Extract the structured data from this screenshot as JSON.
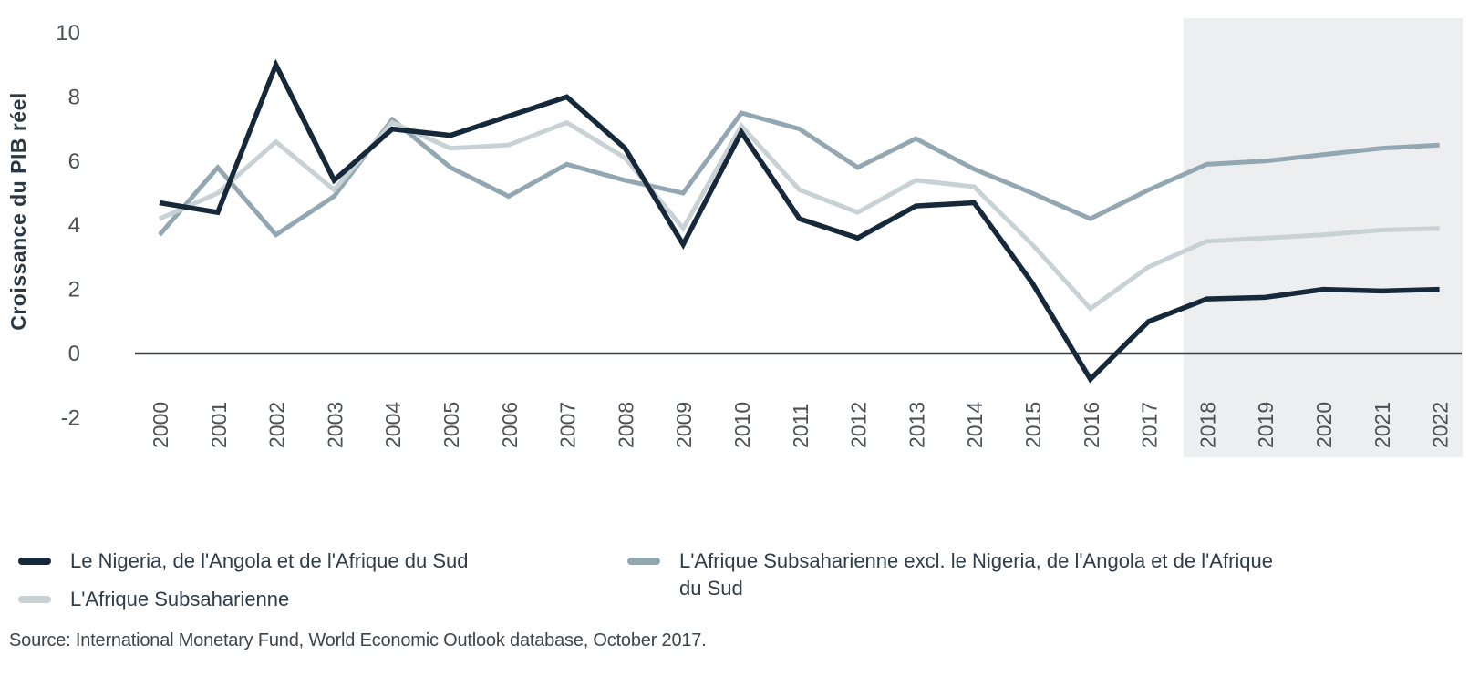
{
  "chart_data": {
    "type": "line",
    "title": "",
    "xlabel": "",
    "ylabel": "Croissance du PIB réel",
    "x": [
      2000,
      2001,
      2002,
      2003,
      2004,
      2005,
      2006,
      2007,
      2008,
      2009,
      2010,
      2011,
      2012,
      2013,
      2014,
      2015,
      2016,
      2017,
      2018,
      2019,
      2020,
      2021,
      2022
    ],
    "series": [
      {
        "name": "Le Nigeria, de l'Angola et de l'Afrique du Sud",
        "color": "#16293a",
        "stroke_width": 5.5,
        "values": [
          4.7,
          4.4,
          9.0,
          5.4,
          7.0,
          6.8,
          7.4,
          8.0,
          6.4,
          3.4,
          6.9,
          4.2,
          3.6,
          4.6,
          4.7,
          2.2,
          -0.8,
          1.0,
          1.7,
          1.75,
          2.0,
          1.95,
          2.0
        ]
      },
      {
        "name": "L'Afrique Subsaharienne",
        "color": "#c8d2d5",
        "stroke_width": 5,
        "values": [
          4.2,
          5.0,
          6.6,
          5.1,
          7.2,
          6.4,
          6.5,
          7.2,
          6.1,
          3.9,
          7.1,
          5.1,
          4.4,
          5.4,
          5.2,
          3.4,
          1.4,
          2.7,
          3.5,
          3.6,
          3.7,
          3.85,
          3.9
        ]
      },
      {
        "name": "L'Afrique Subsaharienne excl. le Nigeria, de l'Angola et de l'Afrique du Sud",
        "color": "#92a7b2",
        "stroke_width": 5,
        "values": [
          3.7,
          5.8,
          3.7,
          4.9,
          7.3,
          5.8,
          4.9,
          5.9,
          5.4,
          5.0,
          7.5,
          7.0,
          5.8,
          6.7,
          5.75,
          5.0,
          4.2,
          5.1,
          5.9,
          6.0,
          6.2,
          6.4,
          6.5
        ]
      }
    ],
    "yticks": [
      10,
      8,
      6,
      4,
      2,
      0,
      -2
    ],
    "ylim": [
      -2.8,
      10.5
    ],
    "grid": false,
    "zero_line": true,
    "legend_position": "bottom",
    "forecast_band": {
      "x_start": 2017.6,
      "x_end": 2022.4,
      "color": "#edeef0"
    }
  },
  "axis": {
    "y_title": "Croissance du PIB réel"
  },
  "legend": {
    "items": [
      {
        "label": "Le Nigeria, de l'Angola et de l'Afrique du Sud",
        "color": "#16293a"
      },
      {
        "label": "L'Afrique Subsaharienne",
        "color": "#c8d2d5"
      },
      {
        "label": "L'Afrique Subsaharienne excl. le Nigeria, de l'Angola et de l'Afrique du Sud",
        "color": "#92a7b2"
      }
    ]
  },
  "source": "Source: International Monetary Fund, World Economic Outlook database, October 2017.",
  "colors": {
    "zero_line": "#3d4043",
    "tick_label": "#4b5056",
    "axis_title": "#2b3945",
    "background": "#ffffff"
  }
}
